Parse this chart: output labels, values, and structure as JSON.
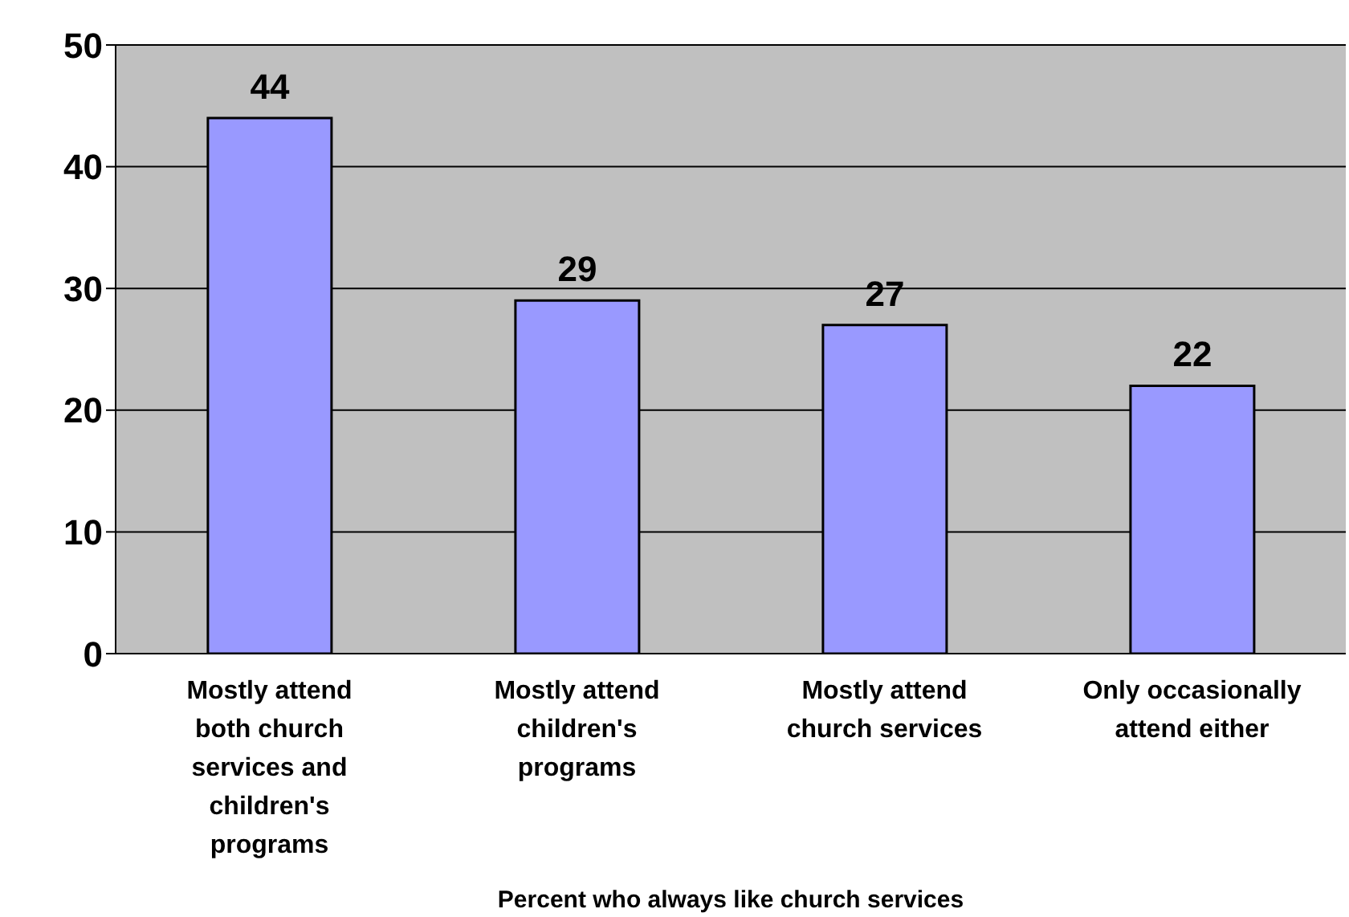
{
  "chart_data": {
    "type": "bar",
    "xlabel": "Percent who always like church services",
    "categories": [
      "Mostly attend both church services and children's programs",
      "Mostly attend children's programs",
      "Mostly attend church services",
      "Only occasionally attend either"
    ],
    "values": [
      44,
      29,
      27,
      22
    ],
    "color": "#9999ff",
    "ylim": [
      0,
      50
    ],
    "yticks": [
      0,
      10,
      20,
      30,
      40,
      50
    ],
    "grid": "y",
    "data_labels": true,
    "legend": false
  }
}
